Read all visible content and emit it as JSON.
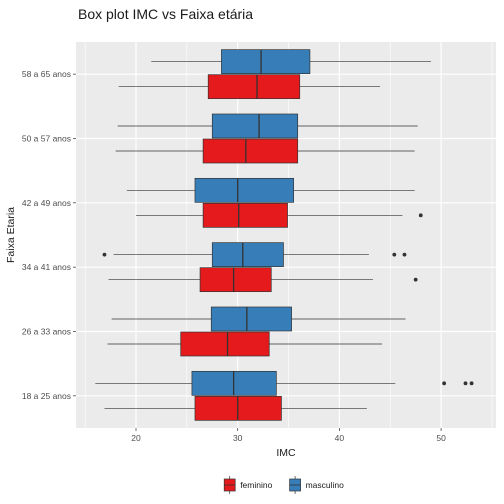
{
  "chart_data": {
    "type": "boxplot",
    "orientation": "horizontal",
    "title": "Box plot IMC vs Faixa etária",
    "xlabel": "IMC",
    "ylabel": "Faixa Etaria",
    "xlim": [
      14.1,
      55.4
    ],
    "x_ticks": [
      20,
      30,
      40,
      50
    ],
    "categories": [
      "18 a 25 anos",
      "26 a 33 anos",
      "34 a 41 anos",
      "42 a 49 anos",
      "50 a 57 anos",
      "58 a 65 anos"
    ],
    "grid": true,
    "legend_position": "bottom",
    "series": [
      {
        "name": "feminino",
        "color": "#E41A1C",
        "boxes": [
          {
            "min": 16.9,
            "q1": 25.8,
            "median": 30.0,
            "q3": 34.3,
            "max": 42.7,
            "outliers": []
          },
          {
            "min": 17.2,
            "q1": 24.4,
            "median": 29.0,
            "q3": 33.1,
            "max": 44.2,
            "outliers": []
          },
          {
            "min": 17.3,
            "q1": 26.3,
            "median": 29.6,
            "q3": 33.3,
            "max": 43.3,
            "outliers": [
              47.5
            ]
          },
          {
            "min": 20.0,
            "q1": 26.6,
            "median": 30.1,
            "q3": 34.9,
            "max": 46.2,
            "outliers": [
              48.0
            ]
          },
          {
            "min": 18.0,
            "q1": 26.6,
            "median": 30.8,
            "q3": 35.9,
            "max": 47.4,
            "outliers": []
          },
          {
            "min": 18.3,
            "q1": 27.1,
            "median": 31.9,
            "q3": 36.1,
            "max": 44.0,
            "outliers": []
          }
        ]
      },
      {
        "name": "masculino",
        "color": "#377EB8",
        "boxes": [
          {
            "min": 16.0,
            "q1": 25.5,
            "median": 29.6,
            "q3": 33.8,
            "max": 45.5,
            "outliers": [
              50.3,
              52.4,
              53.0
            ]
          },
          {
            "min": 17.6,
            "q1": 27.4,
            "median": 30.9,
            "q3": 35.3,
            "max": 46.5,
            "outliers": []
          },
          {
            "min": 17.8,
            "q1": 27.5,
            "median": 30.5,
            "q3": 34.5,
            "max": 42.9,
            "outliers": [
              16.9,
              45.4,
              46.4
            ]
          },
          {
            "min": 19.1,
            "q1": 25.8,
            "median": 30.0,
            "q3": 35.5,
            "max": 47.4,
            "outliers": []
          },
          {
            "min": 18.2,
            "q1": 27.5,
            "median": 32.1,
            "q3": 35.9,
            "max": 47.7,
            "outliers": []
          },
          {
            "min": 21.5,
            "q1": 28.4,
            "median": 32.3,
            "q3": 37.1,
            "max": 49.0,
            "outliers": []
          }
        ]
      }
    ]
  }
}
